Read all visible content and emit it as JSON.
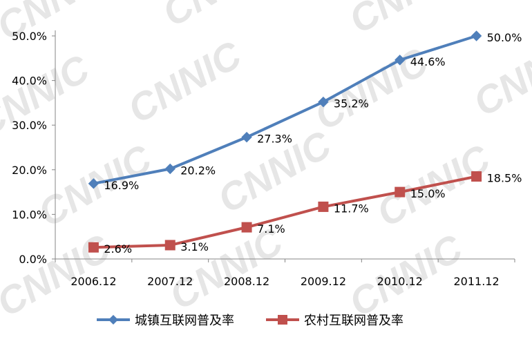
{
  "watermark": "CNNIC",
  "chart_data": {
    "type": "line",
    "categories": [
      "2006.12",
      "2007.12",
      "2008.12",
      "2009.12",
      "2010.12",
      "2011.12"
    ],
    "series": [
      {
        "name": "城镇互联网普及率",
        "color": "#4f7fba",
        "marker": "diamond",
        "values": [
          16.9,
          20.2,
          27.3,
          35.2,
          44.6,
          50.0
        ],
        "labels": [
          "16.9%",
          "20.2%",
          "27.3%",
          "35.2%",
          "44.6%",
          "50.0%"
        ]
      },
      {
        "name": "农村互联网普及率",
        "color": "#c0504d",
        "marker": "square",
        "values": [
          2.6,
          3.1,
          7.1,
          11.7,
          15.0,
          18.5
        ],
        "labels": [
          "2.6%",
          "3.1%",
          "7.1%",
          "11.7%",
          "15.0%",
          "18.5%"
        ]
      }
    ],
    "y_ticks": [
      "0.0%",
      "10.0%",
      "20.0%",
      "30.0%",
      "40.0%",
      "50.0%"
    ],
    "ylim": [
      0,
      50
    ],
    "grid": false,
    "legend_position": "bottom"
  }
}
